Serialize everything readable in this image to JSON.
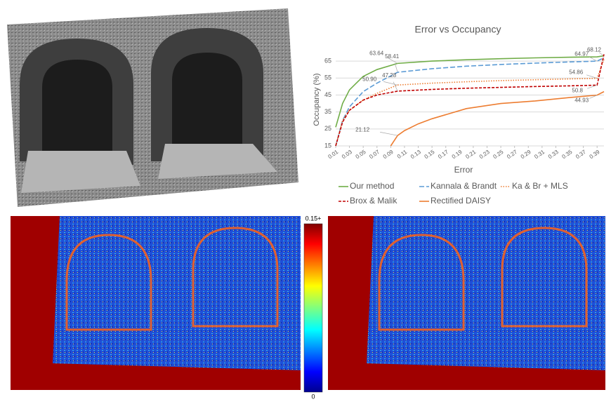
{
  "chart_data": {
    "type": "line",
    "title": "Error vs Occupancy",
    "x_label": "Error",
    "y_label": "Occupancy (%)",
    "xlim": [
      0.01,
      0.4
    ],
    "xticks": [
      0.01,
      0.03,
      0.05,
      0.07,
      0.09,
      0.11,
      0.13,
      0.15,
      0.17,
      0.19,
      0.21,
      0.23,
      0.25,
      0.27,
      0.29,
      0.31,
      0.33,
      0.35,
      0.37,
      0.39
    ],
    "ylim": [
      15,
      70
    ],
    "yticks": [
      15,
      25,
      35,
      45,
      55,
      65
    ],
    "grid": true,
    "series": [
      {
        "name": "Our method",
        "color": "#70ad47",
        "dash": "solid",
        "x": [
          0.01,
          0.02,
          0.03,
          0.05,
          0.07,
          0.1,
          0.15,
          0.2,
          0.25,
          0.3,
          0.35,
          0.39,
          0.4
        ],
        "values": [
          26,
          40,
          48,
          56,
          60,
          63.64,
          65,
          65.8,
          66.4,
          66.9,
          67.3,
          67.5,
          68.12
        ],
        "value_labels": [
          null,
          null,
          null,
          null,
          null,
          "63.64",
          null,
          null,
          null,
          null,
          null,
          null,
          "68.12"
        ]
      },
      {
        "name": "Kannala & Brandt",
        "color": "#5b9bd5",
        "dash": "long",
        "x": [
          0.01,
          0.02,
          0.03,
          0.05,
          0.07,
          0.1,
          0.15,
          0.2,
          0.25,
          0.3,
          0.35,
          0.39,
          0.4
        ],
        "values": [
          15,
          30,
          38,
          47,
          52,
          58.41,
          60.5,
          62,
          63,
          63.8,
          64.5,
          64.97,
          67
        ],
        "value_labels": [
          null,
          null,
          null,
          null,
          null,
          "58.41",
          null,
          null,
          null,
          null,
          null,
          "64.97",
          null
        ]
      },
      {
        "name": "Ka & Br + MLS",
        "color": "#ed7d31",
        "dash": "dot",
        "x": [
          0.01,
          0.02,
          0.03,
          0.05,
          0.07,
          0.1,
          0.15,
          0.2,
          0.25,
          0.3,
          0.35,
          0.39,
          0.4
        ],
        "values": [
          15,
          30,
          36,
          42,
          46,
          50.9,
          52,
          52.8,
          53.5,
          54,
          54.5,
          54.86,
          66
        ],
        "value_labels": [
          null,
          null,
          null,
          null,
          null,
          "50.90",
          null,
          null,
          null,
          null,
          null,
          "54.86",
          null
        ]
      },
      {
        "name": "Brox & Malik",
        "color": "#c00000",
        "dash": "dash",
        "x": [
          0.01,
          0.02,
          0.03,
          0.05,
          0.07,
          0.1,
          0.15,
          0.2,
          0.25,
          0.3,
          0.35,
          0.39,
          0.4
        ],
        "values": [
          15,
          29,
          36,
          42,
          45,
          47.28,
          48.3,
          49,
          49.5,
          50,
          50.4,
          50.8,
          69
        ],
        "value_labels": [
          null,
          null,
          null,
          null,
          null,
          "47.28",
          null,
          null,
          null,
          null,
          null,
          "50.8",
          null
        ]
      },
      {
        "name": "Rectified DAISY",
        "color": "#ed7d31",
        "dash": "solid",
        "x": [
          0.09,
          0.1,
          0.11,
          0.13,
          0.15,
          0.2,
          0.25,
          0.3,
          0.35,
          0.39,
          0.4
        ],
        "values": [
          15,
          21.12,
          24,
          28,
          31,
          37,
          40,
          41.5,
          43.5,
          44.93,
          47
        ],
        "value_labels": [
          null,
          "21.12",
          null,
          null,
          null,
          null,
          null,
          null,
          null,
          "44.93",
          null
        ]
      }
    ]
  },
  "colorbar": {
    "top_label": "0.15+",
    "bottom_label": "0"
  }
}
